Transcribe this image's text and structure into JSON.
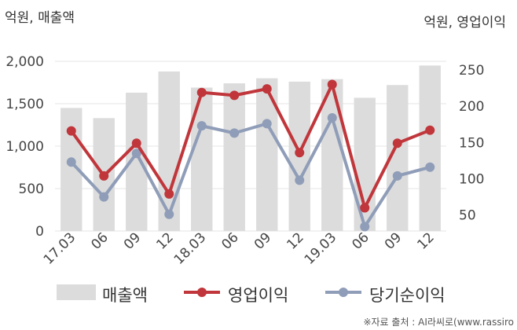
{
  "chart_data": {
    "type": "bar+line",
    "unit_left": "억원, 매출액",
    "unit_right": "억원, 영업이익",
    "categories": [
      "17.03",
      "06",
      "09",
      "12",
      "18.03",
      "06",
      "09",
      "12",
      "19.03",
      "06",
      "09",
      "12"
    ],
    "left_axis": {
      "ylim": [
        0,
        2000
      ],
      "ticks": [
        "2,000",
        "1,500",
        "1,000",
        "500",
        "0"
      ],
      "tick_values": [
        2000,
        1500,
        1000,
        500,
        0
      ]
    },
    "right_axis": {
      "ylim": [
        28,
        262
      ],
      "ticks": [
        "250",
        "200",
        "150",
        "100",
        "50"
      ],
      "tick_values": [
        250,
        200,
        150,
        100,
        50
      ]
    },
    "series": [
      {
        "name": "매출액",
        "kind": "bar",
        "axis": "left",
        "color": "#dcdcdc",
        "values": [
          1450,
          1330,
          1630,
          1880,
          1690,
          1740,
          1800,
          1760,
          1790,
          1570,
          1720,
          1950
        ]
      },
      {
        "name": "영업이익",
        "kind": "line",
        "axis": "right",
        "color": "#c0363b",
        "values": [
          166,
          104,
          149,
          79,
          219,
          215,
          224,
          136,
          230,
          60,
          149,
          167
        ]
      },
      {
        "name": "당기순이익",
        "kind": "line",
        "axis": "right",
        "color": "#8f9db8",
        "values": [
          123,
          75,
          135,
          51,
          173,
          163,
          176,
          98,
          184,
          34,
          104,
          116
        ]
      }
    ],
    "grid": "horizontal",
    "legend_position": "bottom"
  },
  "source": "※자료 출처 : AI라씨로(www.rassiro"
}
